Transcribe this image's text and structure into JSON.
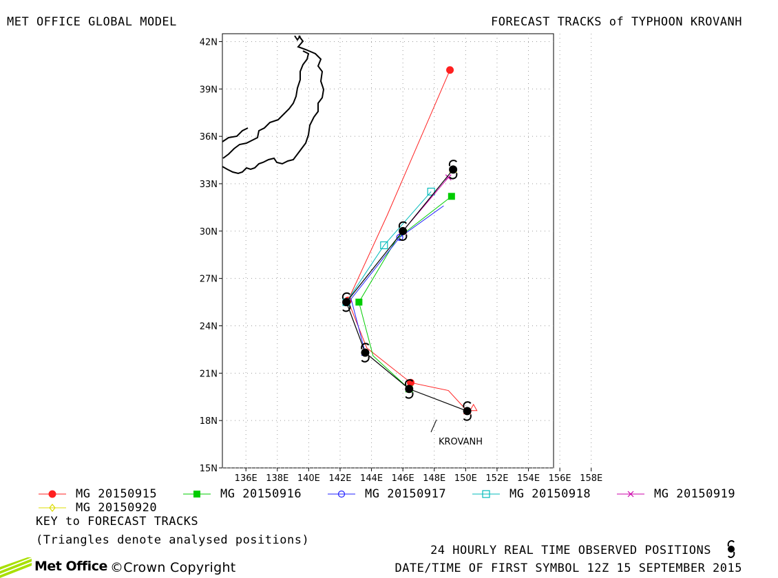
{
  "header": {
    "left_title": "MET OFFICE GLOBAL MODEL",
    "right_title": "FORECAST TRACKS of TYPHOON KROVANH"
  },
  "map": {
    "lon_ticks": [
      "136E",
      "138E",
      "140E",
      "142E",
      "144E",
      "146E",
      "148E",
      "150E",
      "152E",
      "154E",
      "156E",
      "158E"
    ],
    "lat_ticks": [
      "15N",
      "18N",
      "21N",
      "24N",
      "27N",
      "30N",
      "33N",
      "36N",
      "39N",
      "42N"
    ],
    "storm_label": "KROVANH",
    "lon_range": [
      134.5,
      155.6
    ],
    "lat_range": [
      15,
      42.5
    ],
    "gridlines": true,
    "projection": "lat-lon"
  },
  "chart_data": {
    "type": "line",
    "title": "FORECAST TRACKS of TYPHOON KROVANH",
    "xlabel": "",
    "ylabel": "",
    "xlim": [
      134.5,
      155.6
    ],
    "ylim": [
      15,
      42.5
    ],
    "observed": {
      "name": "24 HOURLY REAL TIME OBSERVED POSITIONS",
      "x": [
        150.1,
        146.4,
        143.6,
        142.4,
        146.0,
        149.2
      ],
      "y": [
        18.6,
        20.0,
        22.3,
        25.5,
        30.0,
        33.9
      ]
    },
    "series": [
      {
        "name": "MG 20150915",
        "color": "#ff2020",
        "marker": "filled-circle",
        "x": [
          150.1,
          148.9,
          146.5,
          143.7,
          142.5,
          145.0,
          149.0
        ],
        "y": [
          18.6,
          19.9,
          20.4,
          22.6,
          25.6,
          31.0,
          40.2
        ],
        "analysed": [
          150.5,
          18.8
        ]
      },
      {
        "name": "MG 20150916",
        "color": "#00cc00",
        "marker": "filled-square",
        "x": [
          146.4,
          144.1,
          143.2,
          145.6,
          149.1
        ],
        "y": [
          20.0,
          22.1,
          25.5,
          29.5,
          32.2
        ]
      },
      {
        "name": "MG 20150917",
        "color": "#2020ff",
        "marker": "open-circle",
        "x": [
          143.6,
          142.7,
          145.8,
          148.6
        ],
        "y": [
          22.3,
          25.7,
          29.6,
          31.6
        ]
      },
      {
        "name": "MG 20150918",
        "color": "#00bbbb",
        "marker": "open-square",
        "x": [
          142.4,
          144.8,
          147.8
        ],
        "y": [
          25.5,
          29.1,
          32.5
        ]
      },
      {
        "name": "MG 20150919",
        "color": "#cc00aa",
        "marker": "x",
        "x": [
          146.0,
          148.9
        ],
        "y": [
          30.0,
          33.4
        ]
      },
      {
        "name": "MG 20150920",
        "color": "#dddd00",
        "marker": "open-diamond",
        "x": [
          149.2
        ],
        "y": [
          33.9
        ]
      }
    ]
  },
  "legend": {
    "items": [
      {
        "label": "MG 20150915"
      },
      {
        "label": "MG 20150916"
      },
      {
        "label": "MG 20150917"
      },
      {
        "label": "MG 20150918"
      },
      {
        "label": "MG 20150919"
      },
      {
        "label": "MG 20150920"
      }
    ],
    "key_title": "KEY to FORECAST TRACKS",
    "key_note": "(Triangles denote analysed positions)"
  },
  "footer": {
    "observed_text": "24 HOURLY REAL TIME OBSERVED POSITIONS",
    "date_text": "DATE/TIME OF FIRST SYMBOL 12Z 15 SEPTEMBER 2015",
    "logo_text": "Met Office",
    "copyright": "©Crown Copyright"
  }
}
